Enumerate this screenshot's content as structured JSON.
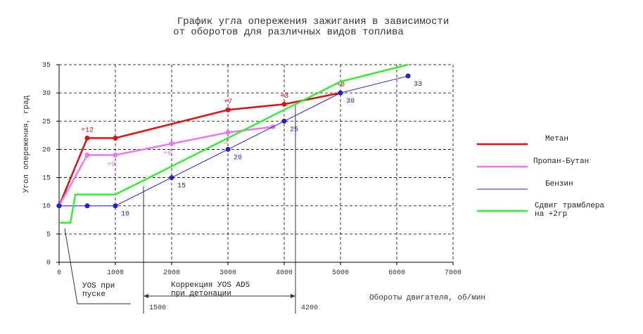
{
  "chart_data": {
    "type": "line",
    "title": "График угла опережения зажигания в зависимости",
    "subtitle": "от оборотов для различных видов топлива",
    "x_label": "Обороты двигателя, об/мин",
    "y_label": "Угол опережения, град",
    "xlim": [
      0,
      7000
    ],
    "xticks": [
      0,
      1000,
      2000,
      3000,
      4000,
      5000,
      6000,
      7000
    ],
    "ylim": [
      0,
      35
    ],
    "yticks": [
      0,
      5,
      10,
      15,
      20,
      25,
      30,
      35
    ],
    "grid": true,
    "legend": "right",
    "series": [
      {
        "name": "Метан",
        "color": "#dd1111",
        "width": 2.5,
        "markers": true,
        "x": [
          0,
          500,
          1000,
          3000,
          4000,
          5000
        ],
        "values": [
          10,
          22,
          22,
          27,
          28,
          30
        ],
        "point_notes": [
          null,
          "+12",
          null,
          "+7",
          "+3",
          "+0"
        ]
      },
      {
        "name": "Пропан-Бутан",
        "color": "#ee77ee",
        "width": 2.5,
        "markers": true,
        "x": [
          0,
          500,
          1000,
          2000,
          3000,
          3800
        ],
        "values": [
          10,
          19,
          19,
          21,
          23,
          24
        ],
        "point_notes": [
          null,
          null,
          "+9",
          "+6",
          "+3",
          null
        ]
      },
      {
        "name": "Бензин",
        "color": "#2222cc",
        "width": 1,
        "markers": true,
        "x": [
          0,
          500,
          1000,
          2000,
          3000,
          4000,
          5000,
          6200
        ],
        "values": [
          10,
          10,
          10,
          15,
          20,
          25,
          30,
          33
        ],
        "point_notes": [
          null,
          null,
          "10",
          "15",
          "20",
          "25",
          "30",
          "33"
        ]
      },
      {
        "name": "Сдвиг трамблера на +2гр",
        "color": "#33ee33",
        "width": 2.5,
        "markers": false,
        "x": [
          0,
          200,
          290,
          1000,
          5000,
          6200
        ],
        "values": [
          7,
          7,
          12,
          12,
          32,
          35
        ]
      }
    ],
    "start_note": [
      "УОЅ при",
      "пуске"
    ],
    "detonation_note": [
      "Коррекция УОЅ АD5",
      "при детонации"
    ],
    "detonation_range": [
      1500,
      4200
    ]
  }
}
